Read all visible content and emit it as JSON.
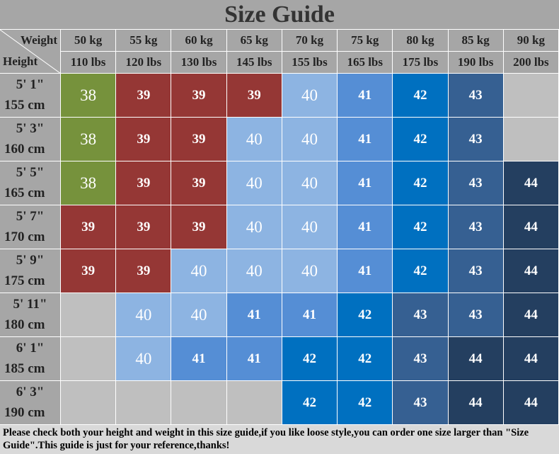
{
  "title": "Size Guide",
  "header": {
    "weight_label": "Weight",
    "height_label": "Height",
    "kg": [
      "50 kg",
      "55 kg",
      "60 kg",
      "65 kg",
      "70 kg",
      "75 kg",
      "80 kg",
      "85 kg",
      "90 kg"
    ],
    "lbs": [
      "110 lbs",
      "120 lbs",
      "130 lbs",
      "145 lbs",
      "155 lbs",
      "165 lbs",
      "175 lbs",
      "190 lbs",
      "200 lbs"
    ]
  },
  "rows": [
    {
      "ft": "5' 1\"",
      "cm": "155 cm",
      "sizes": [
        38,
        39,
        39,
        39,
        40,
        41,
        42,
        43,
        null
      ]
    },
    {
      "ft": "5' 3\"",
      "cm": "160 cm",
      "sizes": [
        38,
        39,
        39,
        40,
        40,
        41,
        42,
        43,
        null
      ]
    },
    {
      "ft": "5' 5\"",
      "cm": "165 cm",
      "sizes": [
        38,
        39,
        39,
        40,
        40,
        41,
        42,
        43,
        44
      ]
    },
    {
      "ft": "5' 7\"",
      "cm": "170 cm",
      "sizes": [
        39,
        39,
        39,
        40,
        40,
        41,
        42,
        43,
        44
      ]
    },
    {
      "ft": "5' 9\"",
      "cm": "175 cm",
      "sizes": [
        39,
        39,
        40,
        40,
        40,
        41,
        42,
        43,
        44
      ]
    },
    {
      "ft": "5' 11\"",
      "cm": "180 cm",
      "sizes": [
        null,
        40,
        40,
        41,
        41,
        42,
        43,
        43,
        44
      ]
    },
    {
      "ft": "6' 1\"",
      "cm": "185 cm",
      "sizes": [
        null,
        40,
        41,
        41,
        42,
        42,
        43,
        44,
        44
      ]
    },
    {
      "ft": "6' 3\"",
      "cm": "190 cm",
      "sizes": [
        null,
        null,
        null,
        null,
        42,
        42,
        43,
        44,
        44
      ]
    }
  ],
  "colors": {
    "38": "#76923c",
    "39": "#953735",
    "40": "#8db4e2",
    "41": "#558ed5",
    "42": "#0070c0",
    "43": "#366092",
    "44": "#243f60"
  },
  "footer": "Please check both your height and weight in this size guide,if you like loose style,you can order one size larger than \"Size Guide\".This guide is just for your reference,thanks!"
}
